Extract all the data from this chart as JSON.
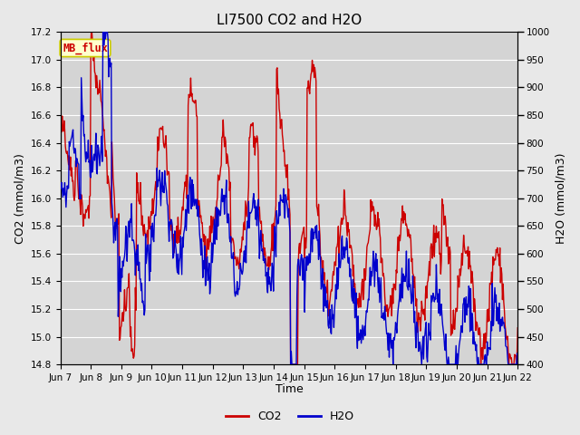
{
  "title": "LI7500 CO2 and H2O",
  "xlabel": "Time",
  "ylabel_left": "CO2 (mmol/m3)",
  "ylabel_right": "H2O (mmol/m3)",
  "co2_ylim": [
    14.8,
    17.2
  ],
  "h2o_ylim": [
    400,
    1000
  ],
  "co2_color": "#cc0000",
  "h2o_color": "#0000cc",
  "fig_bg_color": "#e8e8e8",
  "plot_bg_color": "#d4d4d4",
  "mb_flux_text_color": "#cc0000",
  "mb_flux_box_color": "#ffffcc",
  "mb_flux_box_edge": "#cccc00",
  "x_tick_labels": [
    "Jun 7",
    "Jun 8",
    "Jun 9",
    "Jun 10",
    "Jun 11",
    "Jun 12",
    "Jun 13",
    "Jun 14",
    "Jun 15",
    "Jun 16",
    "Jun 17",
    "Jun 18",
    "Jun 19",
    "Jun 20",
    "Jun 21",
    "Jun 22"
  ],
  "co2_yticks": [
    14.8,
    15.0,
    15.2,
    15.4,
    15.6,
    15.8,
    16.0,
    16.2,
    16.4,
    16.6,
    16.8,
    17.0,
    17.2
  ],
  "h2o_yticks": [
    400,
    450,
    500,
    550,
    600,
    650,
    700,
    750,
    800,
    850,
    900,
    950,
    1000
  ],
  "title_fontsize": 11,
  "axis_label_fontsize": 9,
  "tick_fontsize": 7.5,
  "legend_fontsize": 9,
  "linewidth": 1.0
}
